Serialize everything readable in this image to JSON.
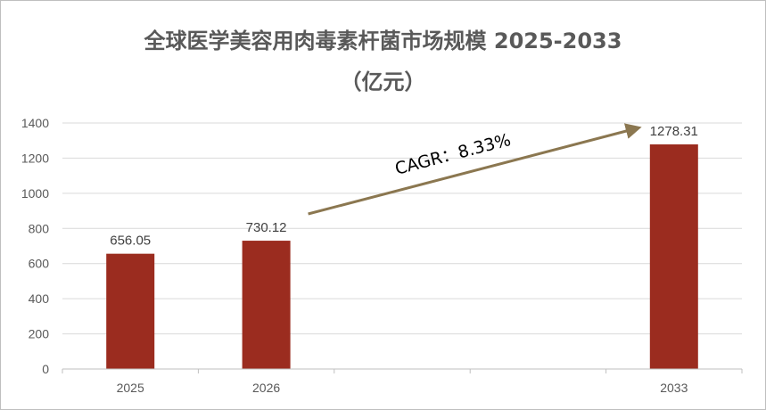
{
  "chart_data": {
    "type": "bar",
    "title": "全球医学美容用肉毒素杆菌市场规模 2025-2033",
    "subtitle": "（亿元）",
    "categories": [
      "2025",
      "2026",
      "2033"
    ],
    "values": [
      656.05,
      730.12,
      1278.31
    ],
    "value_labels": [
      "656.05",
      "730.12",
      "1278.31"
    ],
    "ylim": [
      0,
      1400
    ],
    "yticks": [
      0,
      200,
      400,
      600,
      800,
      1000,
      1200,
      1400
    ],
    "grid": true,
    "bar_color": "#9b2c1f",
    "annotation": {
      "text": "CAGR：8.33%",
      "arrow_color": "#8b7750"
    },
    "legend": "none"
  }
}
